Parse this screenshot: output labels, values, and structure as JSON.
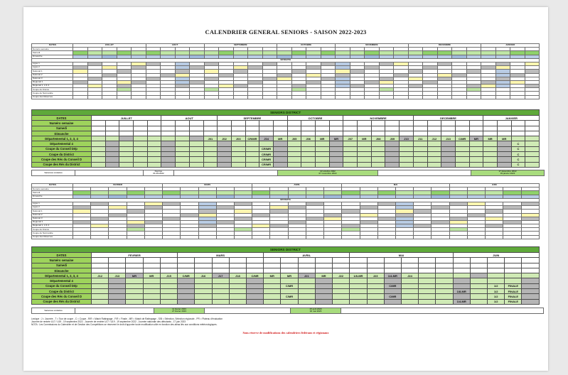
{
  "title": "CALENDRIER GENERAL SENIORS - SAISON 2022-2023",
  "section_seniors": "SENIORS",
  "section_district": "SENIORS DISTRICT",
  "top": {
    "header_dates": "DATES",
    "months": [
      "JUILLET",
      "AOUT",
      "SEPTEMBRE",
      "OCTOBRE",
      "NOVEMBRE",
      "DECEMBRE",
      "JANVIER"
    ],
    "rows": [
      "Numéro semaine",
      "Samedi",
      "Dimanche"
    ],
    "competitions": [
      "Ligue 1",
      "Ligue 2",
      "National 1",
      "National 2",
      "National 3",
      "Régional 1",
      "Régional 1, 2 & 3",
      "Coupe de France",
      "Coupe de Normandie",
      "Coupe des Réserves"
    ],
    "comp_counts": [
      "20",
      "20",
      "18",
      "16",
      "14",
      "14",
      "14"
    ]
  },
  "top_district": {
    "header_dates": "DATES",
    "months": [
      "JUILLET",
      "AOUT",
      "SEPTEMBRE",
      "OCTOBRE",
      "NOVEMBRE",
      "DECEMBRE",
      "JANVIER"
    ],
    "rows": [
      "Numéro semaine",
      "Samedi",
      "Dimanche",
      "Départemental 1, 2, 3, 4",
      "Départemental 4",
      "Coupe du Conseil Dép",
      "Coupe du District",
      "Coupe des Rés du Conseil D",
      "Coupe des Rés du District"
    ],
    "dep_cells": [
      "J01",
      "J02",
      "J03",
      "CR/MR",
      "J04",
      "MR",
      "J05",
      "J06",
      "MR",
      "MR",
      "J07",
      "MR",
      "J08",
      "J09",
      "J10",
      "J11",
      "J12",
      "J13",
      "C/MR",
      "MR",
      "MR",
      "MR"
    ],
    "cr_mr": "CR/MR",
    "c": "C"
  },
  "vacances_top": {
    "label": "Vacances scolaires",
    "rentree": "Rentrée",
    "rentree_date": "01-09-2022",
    "toussaint": "22 octobre 2022",
    "toussaint_end": "07 novembre 2022",
    "noel": "17 décembre 2022",
    "noel_end": "03 janvier 2023"
  },
  "bottom": {
    "header_dates": "DATES",
    "months": [
      "FEVRIER",
      "MARS",
      "AVRIL",
      "MAI",
      "JUIN"
    ],
    "rows": [
      "Numéro semaine",
      "Samedi",
      "Dimanche"
    ],
    "competitions": [
      "Ligue 1",
      "Ligue 2",
      "National 1",
      "National 2",
      "National 3",
      "Régional 1",
      "Régional 1, 2 & 3",
      "Coupe de France",
      "Coupe de Normandie",
      "Coupe des Réserves"
    ]
  },
  "bottom_district": {
    "header_dates": "DATES",
    "months": [
      "FEVRIER",
      "MARS",
      "AVRIL",
      "MAI",
      "JUIN"
    ],
    "rows": [
      "Numéro semaine",
      "Samedi",
      "Dimanche",
      "Départemental 1, 2, 3, 4",
      "Départemental 4",
      "Coupe du Conseil Dép",
      "Coupe du District",
      "Coupe des Rés du Conseil D",
      "Coupe des Rés du District"
    ],
    "dep_cells": [
      "J12",
      "J13",
      "MR",
      "MR",
      "J15",
      "C/MR",
      "J16",
      "J17",
      "J18",
      "C/MR",
      "MR",
      "MR",
      "J21",
      "MR",
      "J22",
      "1/8-MR",
      "J23",
      "1/4-MR",
      "J24"
    ],
    "labels_cup": [
      "1/8-MR",
      "1/4-MR",
      "1/2",
      "FINALE"
    ]
  },
  "vacances_bottom": {
    "label": "Vacances scolaires",
    "hiver": "11 février 2023",
    "hiver_end": "27 février 2023",
    "printemps": "15 avril 2023",
    "printemps_end": "02 mai 2023"
  },
  "legend": [
    "Lexique : J = Journée - T = Tour de coupe - C = Coupe - R/R = Match Rattrapage - F/R = Finale - MR = Match de Rattrapage - S/B = Sélection, Sélection régionale - PR = Plateau d'évaluation",
    "Journée de rentrée U17 / U19 - 19 septembre 2022 - Journée de rentrée U17 / U19 - 19 septembre 2022 - Journée nationale des débutants - 17 juin 2023",
    "NOTA : Les Commissions du Calendrier et de Gestion des Compétitions se réservent le droit d'apporter toute modification utile en fonction des aléas liés aux conditions météorologiques."
  ],
  "reserve": "Sous réserve de modifications des calendriers fédéraux et régionaux"
}
